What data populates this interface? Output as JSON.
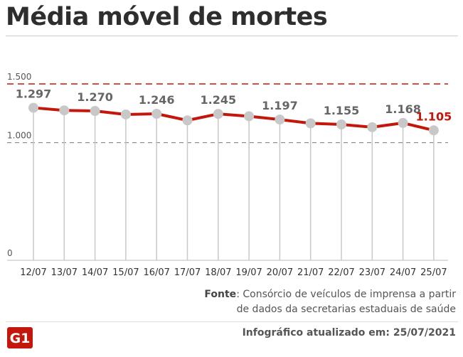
{
  "header": {
    "title": "Média móvel de mortes"
  },
  "chart_data": {
    "type": "line",
    "title": "Média móvel de mortes",
    "xlabel": "",
    "ylabel": "",
    "ylim": [
      0,
      1500
    ],
    "y_ticks": [
      {
        "value": 1500,
        "label": "1.500",
        "style": "red-dashed"
      },
      {
        "value": 1000,
        "label": "1.000",
        "style": "gray-dashed"
      },
      {
        "value": 0,
        "label": "0",
        "style": "none"
      }
    ],
    "categories": [
      "12/07",
      "13/07",
      "14/07",
      "15/07",
      "16/07",
      "17/07",
      "18/07",
      "19/07",
      "20/07",
      "21/07",
      "22/07",
      "23/07",
      "24/07",
      "25/07"
    ],
    "series": [
      {
        "name": "Média móvel de mortes",
        "values": [
          1297,
          1275,
          1270,
          1240,
          1246,
          1190,
          1245,
          1225,
          1197,
          1165,
          1155,
          1132,
          1168,
          1105
        ]
      }
    ],
    "data_labels": [
      {
        "index": 0,
        "text": "1.297"
      },
      {
        "index": 2,
        "text": "1.270"
      },
      {
        "index": 4,
        "text": "1.246"
      },
      {
        "index": 6,
        "text": "1.245"
      },
      {
        "index": 8,
        "text": "1.197"
      },
      {
        "index": 10,
        "text": "1.155"
      },
      {
        "index": 12,
        "text": "1.168"
      },
      {
        "index": 13,
        "text": "1.105",
        "highlight": true
      }
    ],
    "colors": {
      "line": "#c4170c",
      "marker": "#c8c8c8",
      "label": "#666666",
      "highlight_label": "#c4170c",
      "axis_text": "#333333"
    }
  },
  "footer": {
    "source_label": "Fonte",
    "source_line1": ": Consórcio de veículos de imprensa a partir",
    "source_line2": "de dados da secretarias estaduais de saúde",
    "updated": "Infográfico atualizado em: 25/07/2021",
    "logo_text": "G1"
  }
}
